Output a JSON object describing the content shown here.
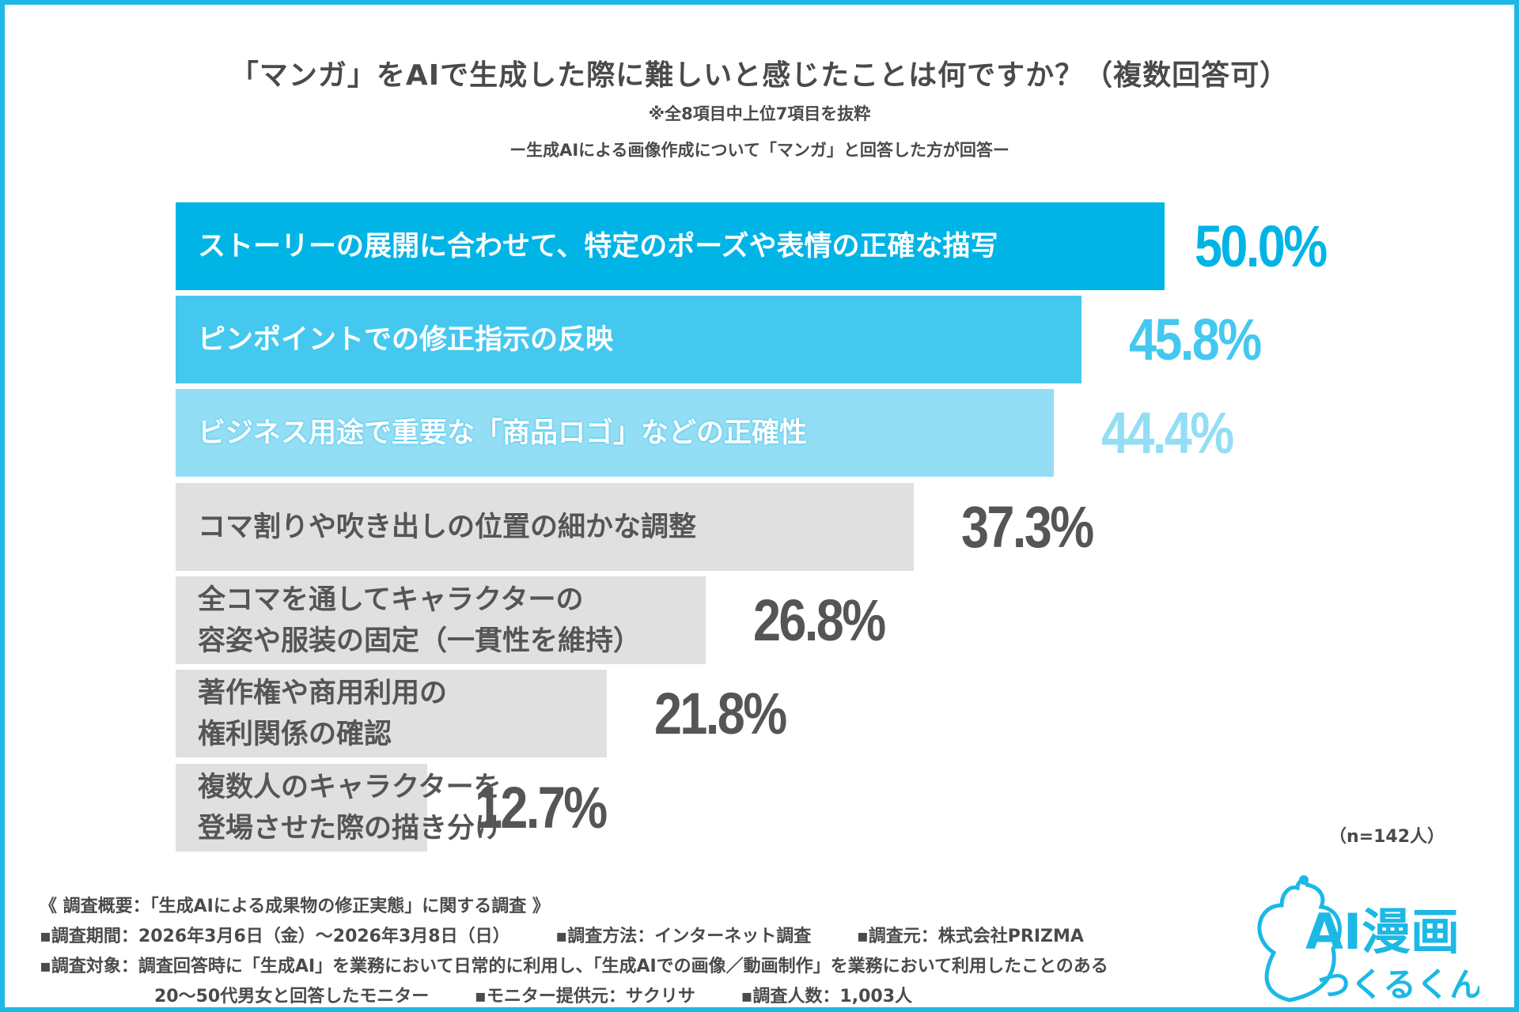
{
  "title": "「マンガ」をAIで生成した際に難しいと感じたことは何ですか？（複数回答可）",
  "subtitle1": "※全8項目中上位7項目を抜粋",
  "subtitle2": "ー生成AIによる画像作成について「マンガ」と回答した方が回答ー",
  "sample_size": "（n=142人）",
  "chart_data": {
    "type": "bar",
    "orientation": "horizontal",
    "categories": [
      "ストーリーの展開に合わせて、特定のポーズや表情の正確な描写",
      "ピンポイントでの修正指示の反映",
      "ビジネス用途で重要な「商品ロゴ」などの正確性",
      "コマ割りや吹き出しの位置の細かな調整",
      "全コマを通してキャラクターの\n容姿や服装の固定（一貫性を維持）",
      "著作権や商用利用の\n権利関係の確認",
      "複数人のキャラクターを\n登場させた際の描き分け"
    ],
    "values": [
      50.0,
      45.8,
      44.4,
      37.3,
      26.8,
      21.8,
      12.7
    ],
    "value_labels": [
      "50.0%",
      "45.8%",
      "44.4%",
      "37.3%",
      "26.8%",
      "21.8%",
      "12.7%"
    ],
    "bar_colors": [
      "#00b4e6",
      "#45c8ef",
      "#93def5",
      "#e0e0e0",
      "#e0e0e0",
      "#e0e0e0",
      "#e0e0e0"
    ],
    "label_colors": [
      "#ffffff",
      "#ffffff",
      "#ffffff",
      "#555555",
      "#555555",
      "#555555",
      "#555555"
    ],
    "value_colors": [
      "#00b4e6",
      "#45c8ef",
      "#93def5",
      "#555555",
      "#555555",
      "#555555",
      "#555555"
    ],
    "xlim": [
      0,
      50
    ],
    "grid": false
  },
  "footer": {
    "heading": "《 調査概要：「生成AIによる成果物の修正実態」に関する調査 》",
    "period": "▪調査期間：2026年3月6日（金）～2026年3月8日（日）",
    "method": "▪調査方法：インターネット調査",
    "source": "▪調査元：株式会社PRIZMA",
    "target": "▪調査対象：調査回答時に「生成AI」を業務において日常的に利用し、「生成AIでの画像／動画制作」を業務において利用したことのある",
    "target2": "20～50代男女と回答したモニター",
    "provider": "▪モニター提供元：サクリサ",
    "count": "▪調査人数：1,003人"
  },
  "logo": {
    "text1": "AI漫画",
    "text2": "つくるくん",
    "color": "#1cb8e6"
  }
}
